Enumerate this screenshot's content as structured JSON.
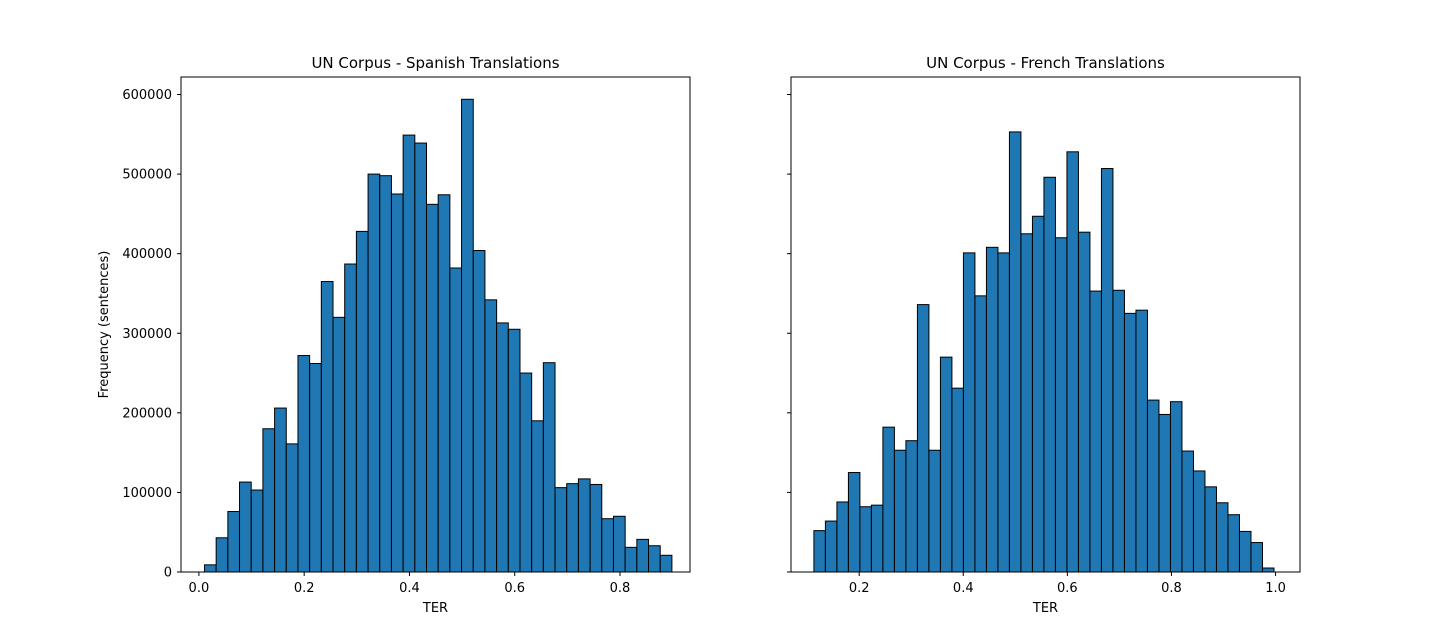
{
  "chart_data": [
    {
      "type": "bar",
      "title": "UN Corpus - Spanish Translations",
      "xlabel": "TER",
      "ylabel": "Frequency (sentences)",
      "xlim": [
        -0.034,
        0.933
      ],
      "ylim": [
        0,
        622000
      ],
      "xticks": [
        0.0,
        0.2,
        0.4,
        0.6,
        0.8
      ],
      "xtick_labels": [
        "0.0",
        "0.2",
        "0.4",
        "0.6",
        "0.8"
      ],
      "yticks": [
        0,
        100000,
        200000,
        300000,
        400000,
        500000,
        600000
      ],
      "ytick_labels": [
        "0",
        "100000",
        "200000",
        "300000",
        "400000",
        "500000",
        "600000"
      ],
      "bin_start": 0.0106,
      "bin_width": 0.0222,
      "values": [
        9000,
        43000,
        76000,
        113000,
        103000,
        180000,
        206000,
        161000,
        272000,
        262000,
        365000,
        320000,
        387000,
        428000,
        500000,
        498000,
        475000,
        549000,
        539000,
        462000,
        474000,
        382000,
        594000,
        404000,
        342000,
        313000,
        305000,
        250000,
        190000,
        263000,
        106000,
        111000,
        117000,
        110000,
        67000,
        70000,
        31000,
        41000,
        33000,
        21000
      ],
      "color": "#1f77b4",
      "edgecolor": "#000000"
    },
    {
      "type": "bar",
      "title": "UN Corpus - French Translations",
      "xlabel": "TER",
      "ylabel": "",
      "xlim": [
        0.069,
        1.047
      ],
      "ylim": [
        0,
        622000
      ],
      "xticks": [
        0.2,
        0.4,
        0.6,
        0.8,
        1.0
      ],
      "xtick_labels": [
        "0.2",
        "0.4",
        "0.6",
        "0.8",
        "1.0"
      ],
      "yticks": [
        0,
        100000,
        200000,
        300000,
        400000,
        500000,
        600000
      ],
      "ytick_labels": [],
      "bin_start": 0.113,
      "bin_width": 0.0221,
      "values": [
        52000,
        64000,
        88000,
        125000,
        82000,
        84000,
        182000,
        153000,
        165000,
        336000,
        153000,
        270000,
        231000,
        401000,
        347000,
        408000,
        401000,
        553000,
        425000,
        447000,
        496000,
        420000,
        528000,
        427000,
        353000,
        507000,
        354000,
        325000,
        329000,
        216000,
        198000,
        214000,
        152000,
        127000,
        107000,
        87000,
        72000,
        51000,
        37000,
        5000
      ],
      "color": "#1f77b4",
      "edgecolor": "#000000"
    }
  ]
}
